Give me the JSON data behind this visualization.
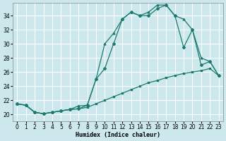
{
  "bg_color": "#cce8ec",
  "grid_color": "#ffffff",
  "line_color": "#1a7a6e",
  "xlabel": "Humidex (Indice chaleur)",
  "xlim": [
    -0.5,
    23.5
  ],
  "ylim": [
    19.0,
    35.8
  ],
  "xticks": [
    0,
    1,
    2,
    3,
    4,
    5,
    6,
    7,
    8,
    9,
    10,
    11,
    12,
    13,
    14,
    15,
    16,
    17,
    18,
    19,
    20,
    21,
    22,
    23
  ],
  "yticks": [
    20,
    22,
    24,
    26,
    28,
    30,
    32,
    34
  ],
  "s1_x": [
    0,
    1,
    2,
    3,
    4,
    5,
    6,
    7,
    8,
    9,
    10,
    11,
    12,
    13,
    14,
    15,
    16,
    17,
    18,
    19,
    20,
    21,
    22,
    23
  ],
  "s1_y": [
    21.5,
    21.3,
    20.3,
    20.1,
    20.3,
    20.5,
    20.7,
    20.8,
    21.0,
    21.5,
    22.0,
    22.5,
    23.0,
    23.5,
    24.0,
    24.5,
    24.8,
    25.2,
    25.5,
    25.8,
    26.0,
    26.2,
    26.5,
    25.5
  ],
  "s2_x": [
    0,
    1,
    2,
    3,
    4,
    5,
    6,
    7,
    8,
    9,
    10,
    11,
    12,
    13,
    14,
    15,
    16,
    17,
    18,
    19,
    20,
    21,
    22,
    23
  ],
  "s2_y": [
    21.5,
    21.3,
    20.3,
    20.1,
    20.3,
    20.5,
    20.7,
    20.8,
    21.3,
    25.0,
    26.5,
    30.0,
    33.5,
    34.5,
    34.0,
    34.0,
    35.0,
    35.5,
    34.0,
    29.5,
    32.0,
    27.0,
    27.5,
    25.5
  ],
  "s3_x": [
    0,
    1,
    2,
    3,
    4,
    5,
    6,
    7,
    8,
    9,
    10,
    11,
    12,
    13,
    14,
    15,
    16,
    17,
    18,
    19,
    20,
    21,
    22,
    23
  ],
  "s3_y": [
    21.5,
    21.3,
    20.3,
    20.1,
    20.3,
    20.5,
    20.7,
    21.2,
    21.3,
    25.0,
    30.0,
    31.5,
    33.5,
    34.5,
    34.0,
    34.5,
    35.5,
    35.5,
    34.0,
    33.5,
    32.0,
    28.0,
    27.5,
    25.5
  ]
}
